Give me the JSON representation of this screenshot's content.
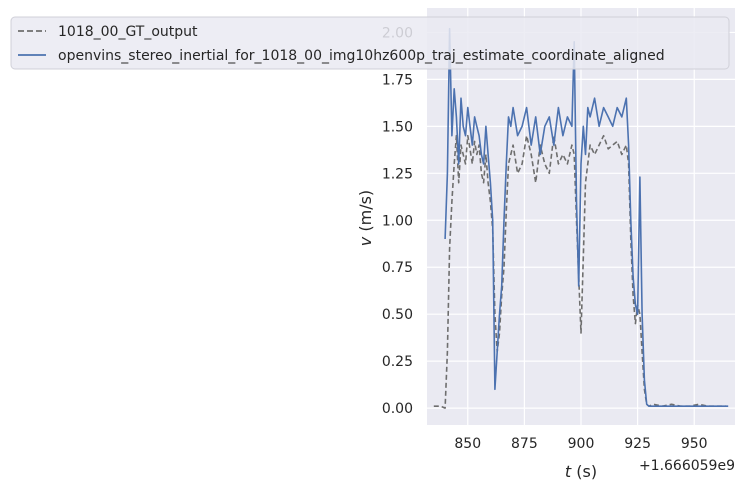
{
  "chart_data": {
    "type": "line",
    "xlabel_var": "t",
    "xlabel_unit": " (s)",
    "ylabel_var": "v",
    "ylabel_unit": " (m/s)",
    "offset_text": "+1.666059e9",
    "xlim": [
      832,
      968
    ],
    "ylim": [
      -0.09,
      2.13
    ],
    "xticks": [
      850,
      875,
      900,
      925,
      950
    ],
    "xtick_labels": [
      "850",
      "875",
      "900",
      "925",
      "950"
    ],
    "yticks": [
      0.0,
      0.25,
      0.5,
      0.75,
      1.0,
      1.25,
      1.5,
      1.75,
      2.0
    ],
    "ytick_labels": [
      "0.00",
      "0.25",
      "0.50",
      "0.75",
      "1.00",
      "1.25",
      "1.50",
      "1.75",
      "2.00"
    ],
    "grid": true,
    "legend_position": "top",
    "series": [
      {
        "name": "1018_00_GT_output",
        "color": "#6e6e6e",
        "dash": "dashed",
        "x": [
          835,
          838,
          840,
          841,
          842,
          843,
          844,
          845,
          846,
          847,
          848,
          849,
          850,
          851,
          852,
          853,
          854,
          855,
          856,
          857,
          858,
          859,
          860,
          861,
          862,
          863,
          864,
          865,
          866,
          867,
          868,
          869,
          870,
          872,
          874,
          876,
          878,
          880,
          882,
          884,
          886,
          888,
          890,
          892,
          894,
          896,
          897,
          898,
          899,
          900,
          901,
          902,
          903,
          904,
          906,
          908,
          910,
          912,
          914,
          916,
          918,
          920,
          921,
          922,
          923,
          924,
          925,
          926,
          927,
          928,
          929,
          930,
          932,
          936,
          940,
          944,
          948,
          952,
          956,
          960,
          964
        ],
        "y": [
          0.01,
          0.01,
          0.0,
          0.3,
          0.85,
          1.1,
          1.3,
          1.45,
          1.2,
          1.4,
          1.35,
          1.3,
          1.45,
          1.38,
          1.3,
          1.42,
          1.35,
          1.4,
          1.25,
          1.2,
          1.35,
          1.2,
          1.1,
          0.95,
          0.5,
          0.3,
          0.4,
          0.6,
          0.75,
          1.05,
          1.3,
          1.35,
          1.4,
          1.25,
          1.3,
          1.45,
          1.35,
          1.2,
          1.4,
          1.3,
          1.25,
          1.45,
          1.3,
          1.35,
          1.3,
          1.4,
          1.35,
          1.0,
          0.7,
          0.4,
          0.8,
          1.2,
          1.3,
          1.4,
          1.35,
          1.4,
          1.45,
          1.38,
          1.4,
          1.42,
          1.35,
          1.4,
          1.3,
          0.9,
          0.6,
          0.45,
          0.55,
          0.5,
          0.3,
          0.1,
          0.02,
          0.01,
          0.02,
          0.01,
          0.02,
          0.01,
          0.01,
          0.02,
          0.01,
          0.01,
          0.01
        ]
      },
      {
        "name": "openvins_stereo_inertial_for_1018_00_img10hz600p_traj_estimate_coordinate_aligned",
        "color": "#4c72b0",
        "dash": "solid",
        "x": [
          840,
          841,
          842,
          843,
          844,
          845,
          846,
          847,
          848,
          849,
          850,
          851,
          852,
          853,
          854,
          855,
          856,
          857,
          858,
          859,
          860,
          861,
          862,
          863,
          864,
          865,
          866,
          867,
          868,
          869,
          870,
          872,
          874,
          876,
          878,
          880,
          882,
          884,
          886,
          888,
          890,
          892,
          894,
          896,
          897,
          898,
          899,
          900,
          901,
          902,
          903,
          904,
          906,
          908,
          910,
          912,
          914,
          916,
          918,
          920,
          921,
          922,
          923,
          924,
          925,
          926,
          927,
          928,
          929,
          930,
          931,
          934,
          938,
          942,
          946,
          950,
          954,
          958,
          962,
          965
        ],
        "y": [
          0.9,
          1.25,
          2.02,
          1.45,
          1.7,
          1.55,
          1.3,
          1.65,
          1.5,
          1.45,
          1.6,
          1.5,
          1.4,
          1.55,
          1.5,
          1.45,
          1.35,
          1.3,
          1.5,
          1.35,
          1.2,
          1.0,
          0.1,
          0.3,
          0.5,
          0.65,
          1.0,
          1.3,
          1.55,
          1.5,
          1.6,
          1.45,
          1.5,
          1.6,
          1.4,
          1.55,
          1.35,
          1.5,
          1.55,
          1.4,
          1.6,
          1.45,
          1.55,
          1.5,
          1.95,
          1.1,
          0.65,
          1.3,
          1.5,
          1.35,
          1.6,
          1.55,
          1.65,
          1.5,
          1.6,
          1.55,
          1.5,
          1.6,
          1.55,
          1.65,
          1.4,
          1.0,
          0.7,
          0.55,
          0.5,
          1.23,
          0.5,
          0.15,
          0.02,
          0.01,
          0.01,
          0.01,
          0.01,
          0.01,
          0.01,
          0.01,
          0.01,
          0.01,
          0.01,
          0.01
        ]
      }
    ]
  }
}
